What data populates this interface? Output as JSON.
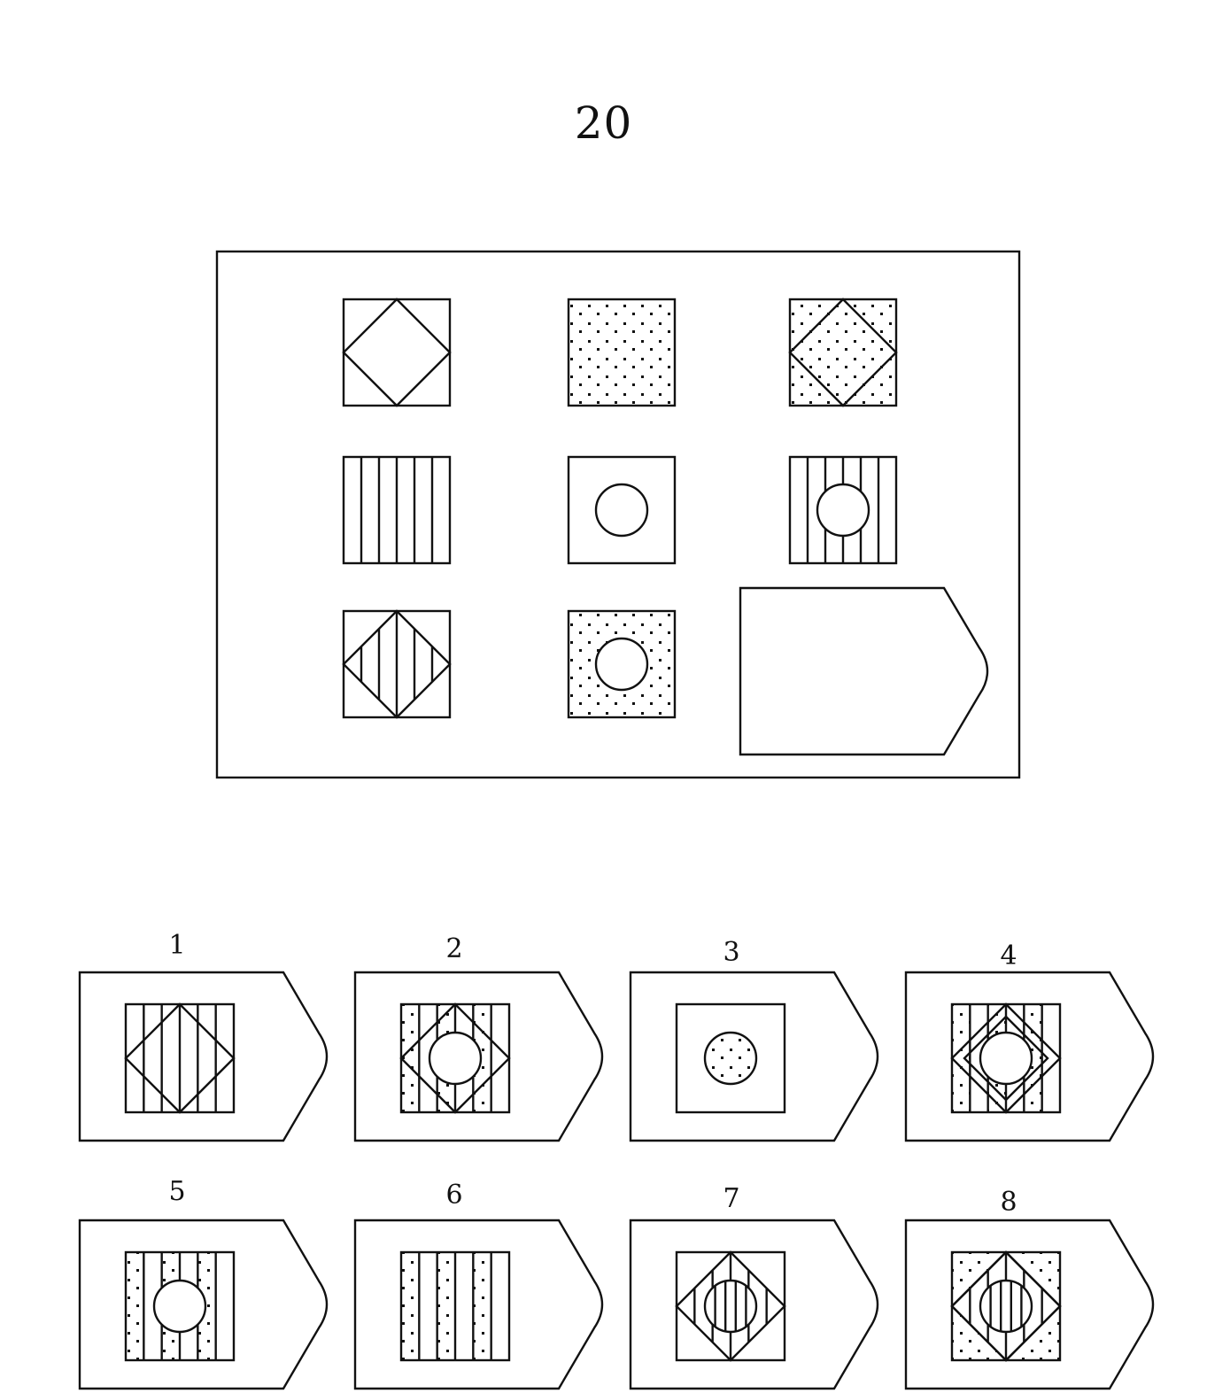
{
  "page_number": "20",
  "matrix": {
    "rows": [
      [
        {
          "shape": "square",
          "fill": "none",
          "overlay": "diamond",
          "overlay_fill": "none"
        },
        {
          "shape": "square",
          "fill": "dots",
          "overlay": "none"
        },
        {
          "shape": "square",
          "fill": "dots",
          "overlay": "diamond",
          "overlay_fill": "none"
        }
      ],
      [
        {
          "shape": "square",
          "fill": "stripes",
          "overlay": "none"
        },
        {
          "shape": "square",
          "fill": "none",
          "overlay": "circle",
          "overlay_fill": "none"
        },
        {
          "shape": "square",
          "fill": "stripes",
          "overlay": "circle",
          "overlay_fill": "none"
        }
      ],
      [
        {
          "shape": "square",
          "fill": "none",
          "overlay": "diamond",
          "overlay_fill": "stripes"
        },
        {
          "shape": "square",
          "fill": "dots",
          "overlay": "circle",
          "overlay_fill": "none"
        },
        {
          "shape": "answer-slot",
          "fill": "empty"
        }
      ]
    ]
  },
  "options": [
    {
      "label": "1",
      "figure": "stripes+diamond"
    },
    {
      "label": "2",
      "figure": "dotted-stripes+diamond+circle"
    },
    {
      "label": "3",
      "figure": "square+dotted-circle"
    },
    {
      "label": "4",
      "figure": "dotted-stripes+double-diamond+circle"
    },
    {
      "label": "5",
      "figure": "dotted-stripes+circle"
    },
    {
      "label": "6",
      "figure": "dotted-stripes"
    },
    {
      "label": "7",
      "figure": "diamond+striped-circle"
    },
    {
      "label": "8",
      "figure": "dots+diamond+striped-circle"
    }
  ]
}
